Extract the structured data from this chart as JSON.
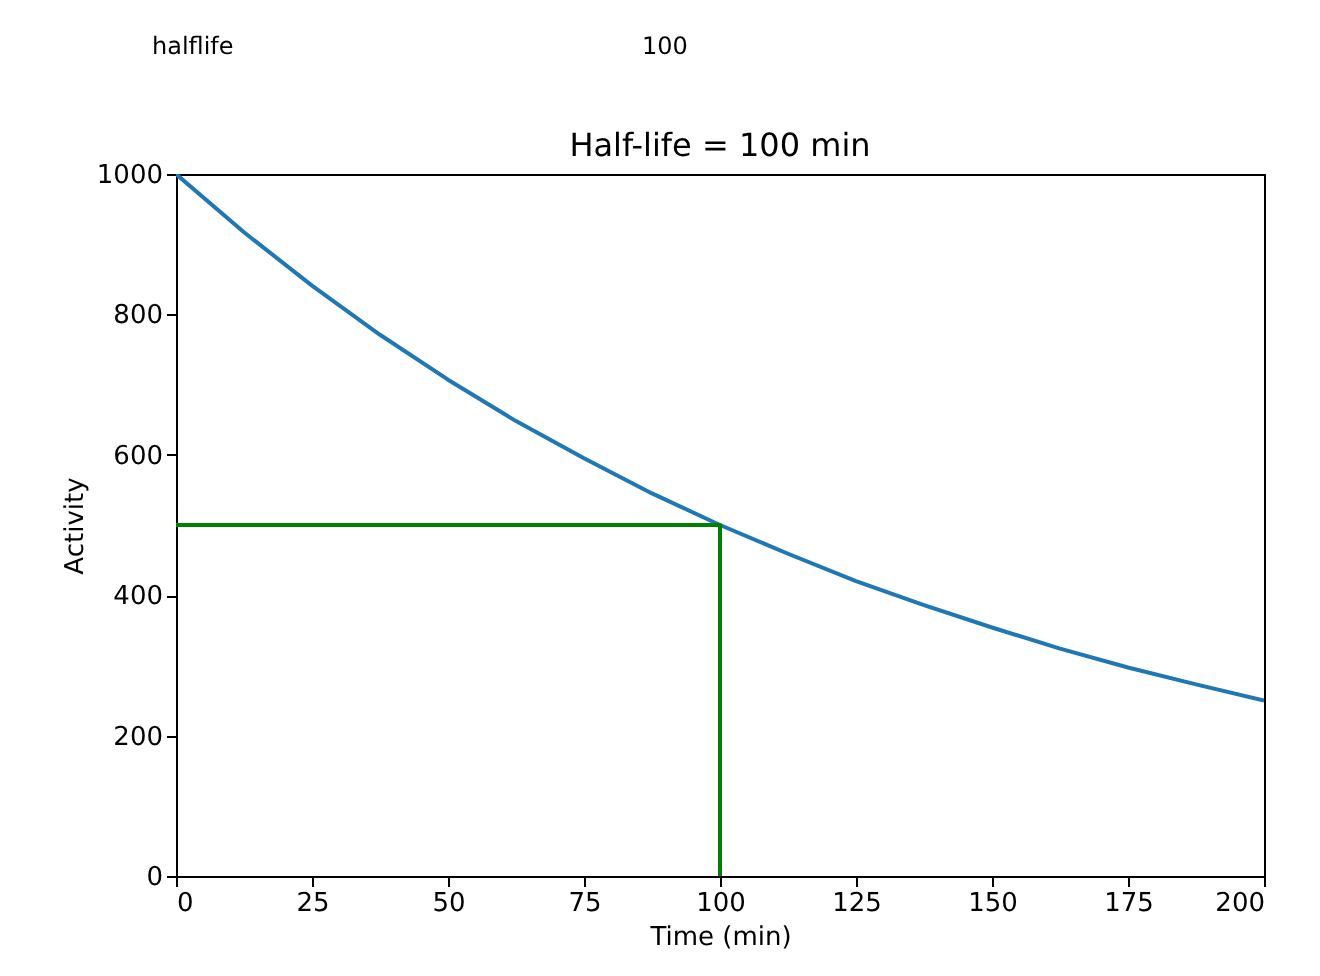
{
  "chart_data": {
    "type": "line",
    "title": "Half-life = 100 min",
    "xlabel": "Time (min)",
    "ylabel": "Activity",
    "xlim": [
      0,
      200
    ],
    "ylim": [
      0,
      1000
    ],
    "xticks": [
      0,
      25,
      50,
      75,
      100,
      125,
      150,
      175,
      200
    ],
    "yticks": [
      0,
      200,
      400,
      600,
      800,
      1000
    ],
    "grid": false,
    "marker": "none",
    "line_style": "solid",
    "annotations": [
      "halflife",
      "100"
    ],
    "series": [
      {
        "color": "#1f77b4",
        "x": [
          0,
          12.5,
          25,
          37.5,
          50,
          62.5,
          75,
          87.5,
          100,
          112.5,
          125,
          137.5,
          150,
          162.5,
          175,
          187.5,
          200
        ],
        "values": [
          1000,
          917,
          841,
          771,
          707,
          648,
          595,
          545,
          500,
          459,
          420,
          386,
          354,
          324,
          297,
          273,
          250
        ]
      },
      {
        "color": "#008000",
        "x": [
          0,
          100,
          100
        ],
        "values": [
          500,
          500,
          0
        ]
      }
    ]
  }
}
